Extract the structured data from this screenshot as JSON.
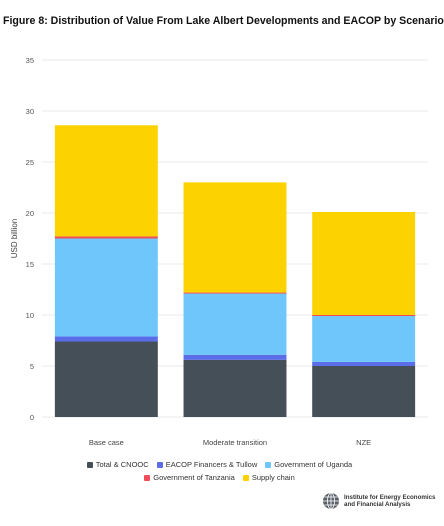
{
  "title": "Figure 8: Distribution of Value From Lake Albert Developments and EACOP by Scenario",
  "chart_data": {
    "type": "bar",
    "stacked": true,
    "categories": [
      "Base case",
      "Moderate transition",
      "NZE"
    ],
    "ylabel": "USD billion",
    "ylim": [
      0,
      35
    ],
    "yticks": [
      0,
      5,
      10,
      15,
      20,
      25,
      30,
      35
    ],
    "grid": true,
    "legend_position": "bottom",
    "series": [
      {
        "name": "Total & CNOOC",
        "color": "#454f57",
        "values": [
          7.4,
          5.6,
          5.0
        ]
      },
      {
        "name": "EACOP Financers & Tullow",
        "color": "#5b6ee8",
        "values": [
          0.5,
          0.5,
          0.4
        ]
      },
      {
        "name": "Government of Uganda",
        "color": "#6ec6fb",
        "values": [
          9.6,
          6.0,
          4.5
        ]
      },
      {
        "name": "Government of Tanzania",
        "color": "#ef4d5a",
        "values": [
          0.2,
          0.1,
          0.1
        ]
      },
      {
        "name": "Supply chain",
        "color": "#fcd200",
        "values": [
          10.9,
          10.8,
          10.1
        ]
      }
    ]
  },
  "legend_rows": [
    [
      "Total & CNOOC",
      "EACOP Financers & Tullow",
      "Government of Uganda"
    ],
    [
      "Government of Tanzania",
      "Supply chain"
    ]
  ],
  "logo": {
    "line1": "Institute for Energy Economics",
    "line2": "and Financial Analysis",
    "icon": "globe-icon"
  }
}
